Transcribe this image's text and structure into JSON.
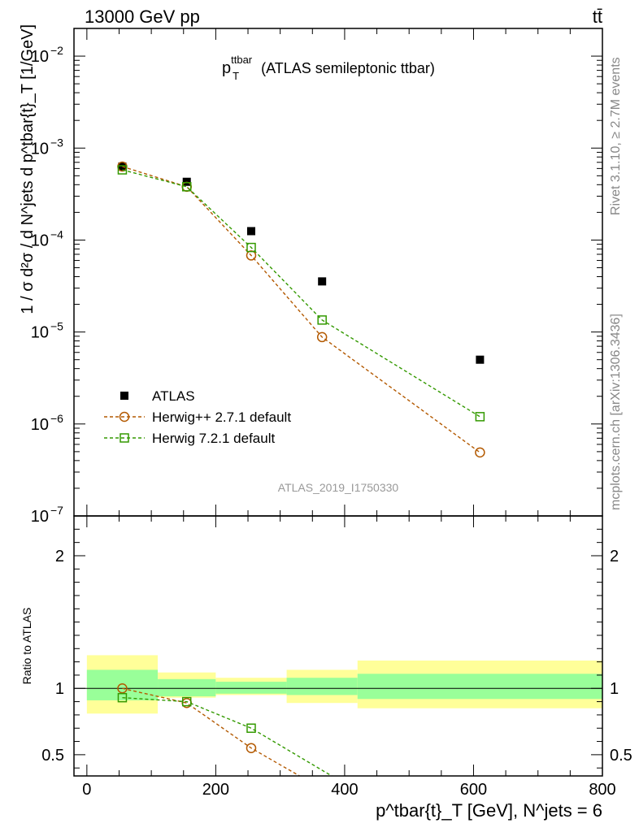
{
  "header": {
    "energy": "13000 GeV pp",
    "process": "tt̄"
  },
  "side_text": {
    "rivet": "Rivet 3.1.10, ≥ 2.7M events",
    "mcplots": "mcplots.cern.ch [arXiv:1306.3436]"
  },
  "plot_title": {
    "main": "p",
    "sup": "ttbar",
    "sub": "T",
    "rest": " (ATLAS semileptonic ttbar)"
  },
  "analysis_id": "ATLAS_2019_I1750330",
  "upper_ylabel": "1 / σ d²σ / d N^jets d p^tbar{t}_T [1/GeV]",
  "ratio_ylabel": "Ratio to ATLAS",
  "xlabel": "p^tbar{t}_T [GeV], N^jets = 6",
  "legend": [
    {
      "label": "ATLAS",
      "color": "#000000",
      "marker": "filled-square"
    },
    {
      "label": "Herwig++ 2.7.1 default",
      "color": "#b35900",
      "marker": "open-circle"
    },
    {
      "label": "Herwig 7.2.1 default",
      "color": "#339900",
      "marker": "open-square"
    }
  ],
  "chart_data": [
    {
      "type": "scatter",
      "panel": "main",
      "xlim": [
        -20,
        800
      ],
      "ylim": [
        1e-07,
        0.02
      ],
      "yscale": "log",
      "yticks": [
        {
          "v": 1e-07,
          "base": "10",
          "exp": "−7"
        },
        {
          "v": 1e-06,
          "base": "10",
          "exp": "−6"
        },
        {
          "v": 1e-05,
          "base": "10",
          "exp": "−5"
        },
        {
          "v": 0.0001,
          "base": "10",
          "exp": "−4"
        },
        {
          "v": 0.001,
          "base": "10",
          "exp": "−3"
        },
        {
          "v": 0.01,
          "base": "10",
          "exp": "−2"
        }
      ],
      "series": [
        {
          "name": "ATLAS",
          "x": [
            55,
            155,
            255,
            365,
            610
          ],
          "y": [
            0.00063,
            0.00043,
            0.000125,
            3.55e-05,
            5e-06
          ]
        },
        {
          "name": "Herwig++ 2.7.1 default",
          "x": [
            55,
            155,
            255,
            365,
            610
          ],
          "y": [
            0.00063,
            0.00038,
            6.8e-05,
            8.8e-06,
            4.9e-07
          ]
        },
        {
          "name": "Herwig 7.2.1 default",
          "x": [
            55,
            155,
            255,
            365,
            610
          ],
          "y": [
            0.00058,
            0.00038,
            8.3e-05,
            1.35e-05,
            1.2e-06
          ]
        }
      ]
    },
    {
      "type": "line",
      "panel": "ratio",
      "xlim": [
        -20,
        800
      ],
      "ylim": [
        0.34,
        2.3
      ],
      "xticks": [
        0,
        200,
        400,
        600,
        800
      ],
      "xticklabels": [
        "0",
        "200",
        "400",
        "600",
        "800"
      ],
      "yticks": [
        0.5,
        1,
        2
      ],
      "yticklabels": [
        "0.5",
        "1",
        "2"
      ],
      "bins": [
        [
          0,
          110
        ],
        [
          110,
          200
        ],
        [
          200,
          310
        ],
        [
          310,
          420
        ],
        [
          420,
          800
        ]
      ],
      "band_inner": [
        [
          0.91,
          1.14
        ],
        [
          0.94,
          1.07
        ],
        [
          0.96,
          1.05
        ],
        [
          0.95,
          1.08
        ],
        [
          0.92,
          1.11
        ]
      ],
      "band_outer": [
        [
          0.81,
          1.25
        ],
        [
          0.93,
          1.12
        ],
        [
          0.95,
          1.08
        ],
        [
          0.89,
          1.14
        ],
        [
          0.85,
          1.21
        ]
      ],
      "series": [
        {
          "name": "Herwig++ 2.7.1 default",
          "x": [
            55,
            155,
            255,
            330
          ],
          "y": [
            1.0,
            0.89,
            0.55,
            0.34
          ]
        },
        {
          "name": "Herwig 7.2.1 default",
          "x": [
            55,
            155,
            255,
            380
          ],
          "y": [
            0.93,
            0.9,
            0.7,
            0.34
          ]
        }
      ],
      "colors": {
        "inner_band": "#99ff99",
        "outer_band": "#ffff99"
      }
    }
  ]
}
